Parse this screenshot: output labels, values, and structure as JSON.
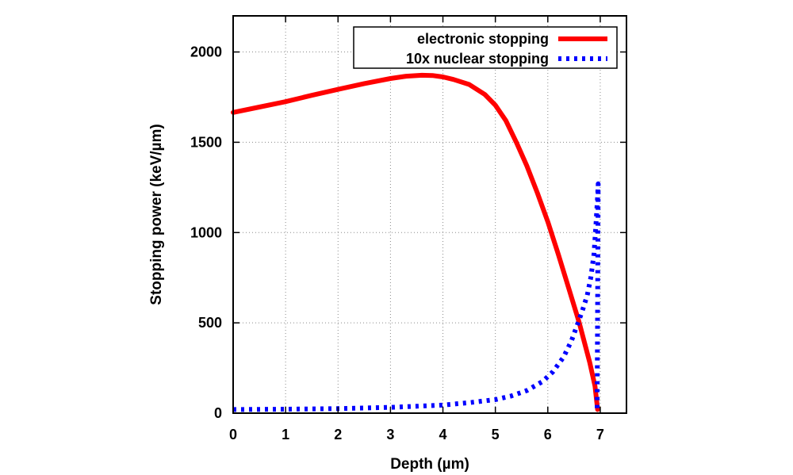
{
  "chart_data": {
    "type": "line",
    "title": "",
    "xlabel": "Depth (µm)",
    "ylabel": "Stopping power (keV/µm)",
    "xlim": [
      0,
      7.5
    ],
    "ylim": [
      0,
      2200
    ],
    "xticks": [
      "0",
      "1",
      "2",
      "3",
      "4",
      "5",
      "6",
      "7"
    ],
    "yticks": [
      "0",
      "500",
      "1000",
      "1500",
      "2000"
    ],
    "grid": true,
    "legend_position": "top-right",
    "series": [
      {
        "name": "electronic stopping",
        "color": "#ff0000",
        "style": "solid",
        "x": [
          0,
          0.5,
          1.0,
          1.5,
          2.0,
          2.5,
          3.0,
          3.3,
          3.6,
          3.8,
          4.0,
          4.2,
          4.5,
          4.8,
          5.0,
          5.2,
          5.4,
          5.6,
          5.8,
          6.0,
          6.2,
          6.4,
          6.6,
          6.7,
          6.8,
          6.9,
          6.95
        ],
        "y": [
          1665,
          1695,
          1725,
          1760,
          1793,
          1825,
          1853,
          1866,
          1871,
          1870,
          1862,
          1848,
          1820,
          1765,
          1705,
          1620,
          1500,
          1370,
          1220,
          1060,
          880,
          690,
          500,
          390,
          280,
          150,
          20
        ]
      },
      {
        "name": "10x nuclear stopping",
        "color": "#0000ff",
        "style": "dotted",
        "x": [
          0,
          1.0,
          2.0,
          3.0,
          3.5,
          4.0,
          4.5,
          5.0,
          5.3,
          5.6,
          5.9,
          6.1,
          6.3,
          6.45,
          6.55,
          6.65,
          6.75,
          6.82,
          6.88,
          6.92,
          6.95,
          6.96,
          6.95,
          6.94
        ],
        "y": [
          20,
          22,
          25,
          32,
          38,
          45,
          58,
          75,
          95,
          125,
          175,
          230,
          310,
          400,
          480,
          560,
          650,
          750,
          880,
          1050,
          1200,
          1270,
          600,
          20
        ]
      }
    ]
  }
}
